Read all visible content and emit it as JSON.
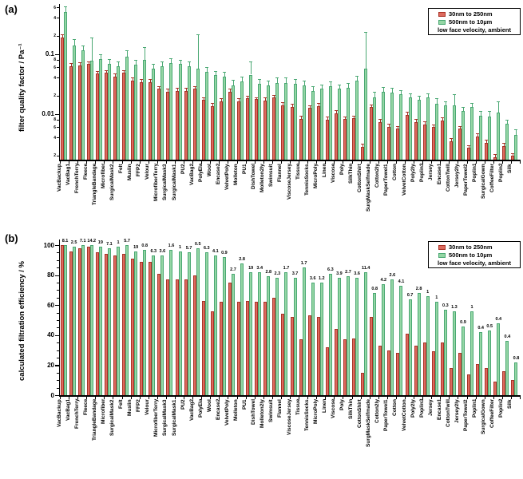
{
  "panels": {
    "a": {
      "letter": "(a)",
      "y_title": "filter quality factor / Pa⁻¹"
    },
    "b": {
      "letter": "(b)",
      "y_title": "calculated filtration efficiency / %"
    }
  },
  "legend": {
    "series": [
      {
        "label": "30nm to 250nm",
        "fill": "#dd6a5e",
        "edge": "#a93226"
      },
      {
        "label": "500nm to 10µm",
        "fill": "#94d6a4",
        "edge": "#4aa873"
      }
    ],
    "note": "low face velocity, ambient"
  },
  "colors": {
    "red_fill": "#dd6a5e",
    "red_edge": "#a93226",
    "green_fill": "#94d6a4",
    "green_edge": "#4aa873",
    "axis": "#000000"
  },
  "categories": [
    "VacBackup",
    "VacBag1",
    "FrenchTerry",
    "Fleece",
    "TriangleBandage",
    "Microfiber",
    "SurgicalMask2",
    "Felt",
    "Muslin",
    "FFP2",
    "Velour",
    "MicrofiberTerry",
    "SurgicalMask3",
    "SurgicalMask1",
    "PU2",
    "VacBag2",
    "PolyEla",
    "Wool",
    "Encase2",
    "VelvetPoly",
    "Molleton",
    "PU1",
    "DishTowel",
    "Molleton2ly",
    "Swimsuit",
    "Flannel",
    "ViscoseJersey",
    "Tissue",
    "TennisSocks",
    "MicroPoly",
    "Linen",
    "Viscose",
    "Poly",
    "SilkThin",
    "CottonShirt",
    "SurgMaskSelfmade",
    "Cotton2ly",
    "PaperTowel1",
    "Cotton",
    "VelvetCotton",
    "Poly2ly",
    "Poplin3",
    "Jersey",
    "Encase1",
    "CottonTwill",
    "Jersey2ly",
    "PaperTowel2",
    "Poplin1",
    "SurgicalGown",
    "CoffeeFilter",
    "Poplin2",
    "Silk"
  ],
  "chart_data": [
    {
      "type": "bar",
      "panel": "a",
      "ylabel": "filter quality factor / Pa⁻¹",
      "yscale": "log",
      "ylim": [
        0.0017,
        0.7
      ],
      "legend_position": "top-right",
      "grid": false,
      "yticks_major": [
        {
          "v": 0.1,
          "label": "0.1"
        },
        {
          "v": 0.01,
          "label": "0.01"
        }
      ],
      "yticks_minor": [
        {
          "v": 0.6,
          "label": "6"
        },
        {
          "v": 0.4,
          "label": "4"
        },
        {
          "v": 0.2,
          "label": "2"
        },
        {
          "v": 0.08,
          "label": "8"
        },
        {
          "v": 0.06,
          "label": "6"
        },
        {
          "v": 0.04,
          "label": "4"
        },
        {
          "v": 0.02,
          "label": "2"
        },
        {
          "v": 0.008,
          "label": "8"
        },
        {
          "v": 0.006,
          "label": "6"
        },
        {
          "v": 0.004,
          "label": "4"
        },
        {
          "v": 0.002,
          "label": "2"
        }
      ],
      "series": [
        {
          "name": "30nm to 250nm",
          "values": [
            0.19,
            0.063,
            0.065,
            0.068,
            0.047,
            0.048,
            0.042,
            0.048,
            0.036,
            0.034,
            0.034,
            0.026,
            0.023,
            0.024,
            0.024,
            0.026,
            0.017,
            0.0135,
            0.016,
            0.023,
            0.016,
            0.018,
            0.0174,
            0.0167,
            0.0185,
            0.0138,
            0.0129,
            0.0082,
            0.0125,
            0.0134,
            0.008,
            0.0102,
            0.0081,
            0.0084,
            0.0028,
            0.0128,
            0.0073,
            0.0061,
            0.0056,
            0.0096,
            0.0073,
            0.0067,
            0.006,
            0.0078,
            0.0035,
            0.0056,
            0.0027,
            0.0042,
            0.0033,
            0.0019,
            0.0029,
            0.002
          ],
          "err_hi": [
            0.21,
            0.07,
            0.072,
            0.075,
            0.052,
            0.053,
            0.047,
            0.053,
            0.04,
            0.038,
            0.038,
            0.029,
            0.026,
            0.027,
            0.027,
            0.029,
            0.019,
            0.015,
            0.018,
            0.026,
            0.018,
            0.02,
            0.019,
            0.0185,
            0.0205,
            0.0155,
            0.0145,
            0.0092,
            0.014,
            0.015,
            0.009,
            0.0115,
            0.0091,
            0.0094,
            0.0032,
            0.0143,
            0.0082,
            0.0068,
            0.0063,
            0.0108,
            0.0082,
            0.0075,
            0.0067,
            0.0087,
            0.0039,
            0.0063,
            0.003,
            0.0047,
            0.0037,
            0.0021,
            0.0033,
            0.0022
          ]
        },
        {
          "name": "500nm to 10µm",
          "values": [
            0.5,
            0.14,
            0.115,
            0.076,
            0.083,
            0.068,
            0.062,
            0.091,
            0.066,
            0.08,
            0.056,
            0.062,
            0.071,
            0.068,
            0.063,
            0.056,
            0.05,
            0.044,
            0.042,
            0.03,
            0.035,
            0.045,
            0.032,
            0.03,
            0.033,
            0.033,
            0.032,
            0.03,
            0.024,
            0.026,
            0.029,
            0.026,
            0.0275,
            0.036,
            0.057,
            0.019,
            0.023,
            0.0225,
            0.021,
            0.0187,
            0.017,
            0.0185,
            0.0148,
            0.0136,
            0.0138,
            0.011,
            0.0128,
            0.0093,
            0.0089,
            0.0106,
            0.0069,
            0.0045
          ],
          "err_hi": [
            0.63,
            0.175,
            0.14,
            0.19,
            0.1,
            0.082,
            0.075,
            0.115,
            0.08,
            0.13,
            0.068,
            0.075,
            0.085,
            0.08,
            0.075,
            0.21,
            0.06,
            0.052,
            0.05,
            0.037,
            0.042,
            0.075,
            0.038,
            0.036,
            0.04,
            0.04,
            0.038,
            0.036,
            0.029,
            0.031,
            0.035,
            0.031,
            0.033,
            0.043,
            0.23,
            0.023,
            0.028,
            0.027,
            0.025,
            0.022,
            0.02,
            0.022,
            0.018,
            0.016,
            0.021,
            0.013,
            0.015,
            0.011,
            0.011,
            0.016,
            0.008,
            0.0055
          ]
        }
      ]
    },
    {
      "type": "bar",
      "panel": "b",
      "ylabel": "calculated filtration efficiency / %",
      "yscale": "linear",
      "ylim": [
        0,
        100
      ],
      "legend_position": "top-right",
      "grid": false,
      "yticks": [
        {
          "v": 0,
          "label": "0"
        },
        {
          "v": 20,
          "label": "20"
        },
        {
          "v": 40,
          "label": "40"
        },
        {
          "v": 60,
          "label": "60"
        },
        {
          "v": 80,
          "label": "80"
        },
        {
          "v": 100,
          "label": "100"
        }
      ],
      "series": [
        {
          "name": "30nm to 250nm",
          "values": [
            100,
            96,
            98,
            99,
            95,
            94,
            93,
            94,
            91,
            89,
            89,
            81,
            77,
            77,
            77,
            80,
            63,
            56,
            62,
            75,
            62,
            63,
            62,
            62,
            65,
            54,
            52,
            37,
            53,
            52,
            32,
            44,
            37,
            38,
            15,
            52,
            33,
            30,
            28,
            41,
            33,
            35,
            29,
            35,
            18,
            28,
            14,
            21,
            18,
            9,
            16,
            10
          ]
        },
        {
          "name": "500nm to 10µm",
          "values": [
            100,
            99,
            100,
            100,
            99,
            98,
            99,
            100,
            96,
            97,
            93,
            93,
            97,
            96,
            95,
            98,
            95,
            93,
            92,
            81,
            88,
            82,
            82,
            79,
            78,
            82,
            78,
            85,
            75,
            75,
            81,
            78,
            79,
            78,
            82,
            68,
            74,
            77,
            73,
            64,
            68,
            66,
            62,
            57,
            56,
            46,
            56,
            42,
            43,
            48,
            36,
            22
          ],
          "point_labels": [
            "8.1",
            "2.5",
            "7.1",
            "14.2",
            "19",
            "7.1",
            "1",
            "5.7",
            "19",
            "0.8",
            "6.3",
            "3.6",
            "1.6",
            "1",
            "5.7",
            "0.5",
            "6.3",
            "4.1",
            "0.9",
            "2.7",
            "2.8",
            "19",
            "3.4",
            "2.8",
            "2.3",
            "1.7",
            "3.7",
            "1.7",
            "3.6",
            "1.2",
            "6.3",
            "3.9",
            "2.7",
            "3.6",
            "11.4",
            "0.8",
            "4.2",
            "2.6",
            "4.1",
            "0.7",
            "2.8",
            "1",
            "1",
            "0.3",
            "1.3",
            "0.9",
            "1",
            "0.4",
            "0.5",
            "0.4",
            "0.4",
            "0.8"
          ]
        }
      ]
    }
  ]
}
